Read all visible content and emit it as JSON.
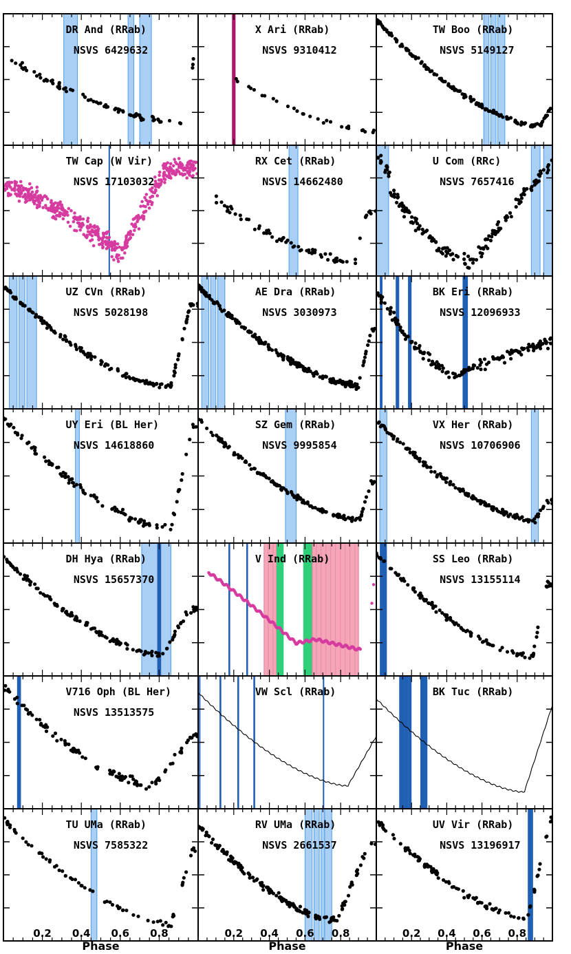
{
  "figure": {
    "xlabel": "Phase",
    "x_tick_labels": [
      "0.2",
      "0.4",
      "0.6",
      "0.8"
    ]
  },
  "colors": {
    "light_band": "#a9cff5",
    "light_band_edge": "#4f9ce8",
    "dark_band": "#1f5fb4",
    "magenta_band": "#b0156e",
    "pink_band": "#f4a6b8",
    "green_band": "#2fd07a",
    "dots": "#000000",
    "magenta_dots": "#d63ba0"
  },
  "chart_data": [
    {
      "type": "scatter",
      "row": 0,
      "col": 0,
      "title": "DR And (RRab)",
      "subtitle": "NSVS 6429632",
      "curve": {
        "kind": "rrab",
        "y0": 0.3,
        "ymin": 0.86,
        "tmin": 0.93,
        "ypeak": 0.3,
        "tpeak": 0.98,
        "spread": 0.035,
        "n": 80
      },
      "bands": [
        {
          "x0": 0.31,
          "x1": 0.38,
          "style": "light"
        },
        {
          "x0": 0.64,
          "x1": 0.67,
          "style": "light"
        },
        {
          "x0": 0.7,
          "x1": 0.76,
          "style": "light"
        }
      ]
    },
    {
      "type": "scatter",
      "row": 0,
      "col": 1,
      "title": "X Ari (RRab)",
      "subtitle": "NSVS 9310412",
      "curve": {
        "kind": "rrab",
        "y0": 0.3,
        "ymin": 0.92,
        "tmin": 0.98,
        "ypeak": 0.9,
        "tpeak": 1.0,
        "spread": 0.02,
        "n": 28,
        "xstart": 0.2
      },
      "bands": [
        {
          "x0": 0.19,
          "x1": 0.21,
          "style": "magenta"
        }
      ]
    },
    {
      "type": "scatter",
      "row": 0,
      "col": 2,
      "title": "TW Boo (RRab)",
      "subtitle": "NSVS 5149127",
      "curve": {
        "kind": "rrab",
        "y0": 0.02,
        "ymin": 0.88,
        "tmin": 0.93,
        "ypeak": 0.7,
        "tpeak": 1.0,
        "spread": 0.025,
        "n": 170
      },
      "bands": [
        {
          "x0": 0.61,
          "x1": 0.64,
          "style": "light"
        },
        {
          "x0": 0.65,
          "x1": 0.68,
          "style": "light"
        },
        {
          "x0": 0.69,
          "x1": 0.73,
          "style": "light"
        }
      ]
    },
    {
      "type": "scatter",
      "row": 1,
      "col": 0,
      "title": "TW Cap (W Vir)",
      "subtitle": "NSVS 17103032",
      "curve": {
        "kind": "wvir",
        "spread": 0.12,
        "n": 520,
        "magenta": true
      },
      "bands": [
        {
          "x0": 0.54,
          "x1": 0.545,
          "style": "dark"
        }
      ]
    },
    {
      "type": "scatter",
      "row": 1,
      "col": 1,
      "title": "RX Cet (RRab)",
      "subtitle": "NSVS 14662480",
      "curve": {
        "kind": "rrab",
        "y0": 0.3,
        "ymin": 0.92,
        "tmin": 0.88,
        "ypeak": 0.5,
        "tpeak": 0.95,
        "spread": 0.05,
        "n": 70,
        "xstart": 0.1
      },
      "bands": [
        {
          "x0": 0.51,
          "x1": 0.56,
          "style": "light"
        }
      ]
    },
    {
      "type": "scatter",
      "row": 1,
      "col": 2,
      "title": "U Com (RRc)",
      "subtitle": "NSVS 7657416",
      "curve": {
        "kind": "rrc",
        "spread": 0.08,
        "n": 170
      },
      "bands": [
        {
          "x0": 0.0,
          "x1": 0.07,
          "style": "light"
        },
        {
          "x0": 0.88,
          "x1": 0.93,
          "style": "light"
        },
        {
          "x0": 0.95,
          "x1": 1.0,
          "style": "light"
        }
      ]
    },
    {
      "type": "scatter",
      "row": 2,
      "col": 0,
      "title": "UZ CVn (RRab)",
      "subtitle": "NSVS 5028198",
      "curve": {
        "kind": "rrab",
        "y0": 0.05,
        "ymin": 0.86,
        "tmin": 0.86,
        "ypeak": 0.2,
        "tpeak": 0.96,
        "spread": 0.035,
        "n": 160
      },
      "bands": [
        {
          "x0": 0.03,
          "x1": 0.07,
          "style": "light"
        },
        {
          "x0": 0.08,
          "x1": 0.11,
          "style": "light"
        },
        {
          "x0": 0.12,
          "x1": 0.17,
          "style": "light"
        }
      ]
    },
    {
      "type": "scatter",
      "row": 2,
      "col": 1,
      "title": "AE Dra (RRab)",
      "subtitle": "NSVS 3030973",
      "curve": {
        "kind": "rrab",
        "y0": 0.05,
        "ymin": 0.85,
        "tmin": 0.9,
        "ypeak": 0.4,
        "tpeak": 0.97,
        "spread": 0.035,
        "n": 230
      },
      "bands": [
        {
          "x0": 0.02,
          "x1": 0.06,
          "style": "light"
        },
        {
          "x0": 0.07,
          "x1": 0.1,
          "style": "light"
        },
        {
          "x0": 0.11,
          "x1": 0.15,
          "style": "light"
        }
      ]
    },
    {
      "type": "scatter",
      "row": 2,
      "col": 2,
      "title": "BK Eri (RRab)",
      "subtitle": "NSVS 12096933",
      "curve": {
        "kind": "rrab",
        "y0": 0.08,
        "ymin": 0.75,
        "tmin": 0.45,
        "ypeak": 0.5,
        "tpeak": 0.97,
        "spread": 0.06,
        "n": 160
      },
      "bands": [
        {
          "x0": 0.02,
          "x1": 0.035,
          "style": "dark"
        },
        {
          "x0": 0.11,
          "x1": 0.13,
          "style": "dark"
        },
        {
          "x0": 0.18,
          "x1": 0.2,
          "style": "dark"
        },
        {
          "x0": 0.49,
          "x1": 0.52,
          "style": "dark"
        }
      ]
    },
    {
      "type": "scatter",
      "row": 3,
      "col": 0,
      "title": "UY Eri (BL Her)",
      "subtitle": "NSVS 14618860",
      "curve": {
        "kind": "rrab",
        "y0": 0.05,
        "ymin": 0.92,
        "tmin": 0.86,
        "ypeak": 0.1,
        "tpeak": 0.97,
        "spread": 0.04,
        "n": 110
      },
      "bands": [
        {
          "x0": 0.37,
          "x1": 0.39,
          "style": "light"
        }
      ]
    },
    {
      "type": "scatter",
      "row": 3,
      "col": 1,
      "title": "SZ Gem (RRab)",
      "subtitle": "NSVS 9995854",
      "curve": {
        "kind": "rrab",
        "y0": 0.05,
        "ymin": 0.85,
        "tmin": 0.91,
        "ypeak": 0.55,
        "tpeak": 0.97,
        "spread": 0.03,
        "n": 140
      },
      "bands": [
        {
          "x0": 0.49,
          "x1": 0.55,
          "style": "light"
        }
      ]
    },
    {
      "type": "scatter",
      "row": 3,
      "col": 2,
      "title": "VX Her (RRab)",
      "subtitle": "NSVS 10706906",
      "curve": {
        "kind": "rrab",
        "y0": 0.05,
        "ymin": 0.85,
        "tmin": 0.9,
        "ypeak": 0.7,
        "tpeak": 0.97,
        "spread": 0.03,
        "n": 150
      },
      "bands": [
        {
          "x0": 0.02,
          "x1": 0.06,
          "style": "light"
        },
        {
          "x0": 0.88,
          "x1": 0.92,
          "style": "light"
        }
      ]
    },
    {
      "type": "scatter",
      "row": 4,
      "col": 0,
      "title": "DH Hya (RRab)",
      "subtitle": "NSVS 15657370",
      "curve": {
        "kind": "rrab",
        "y0": 0.08,
        "ymin": 0.87,
        "tmin": 0.82,
        "ypeak": 0.5,
        "tpeak": 0.95,
        "spread": 0.035,
        "n": 130
      },
      "bands": [
        {
          "x0": 0.71,
          "x1": 0.86,
          "style": "light"
        },
        {
          "x0": 0.79,
          "x1": 0.81,
          "style": "dark"
        }
      ]
    },
    {
      "type": "line",
      "row": 4,
      "col": 1,
      "title": "V Ind (RRab)",
      "subtitle": "",
      "curve": {
        "kind": "vind",
        "magenta": true
      },
      "bands": [
        {
          "x0": 0.37,
          "x1": 0.44,
          "style": "pink"
        },
        {
          "x0": 0.44,
          "x1": 0.48,
          "style": "green"
        },
        {
          "x0": 0.59,
          "x1": 0.64,
          "style": "green"
        },
        {
          "x0": 0.64,
          "x1": 0.9,
          "style": "pink"
        },
        {
          "x0": 0.17,
          "x1": 0.18,
          "style": "dark"
        },
        {
          "x0": 0.27,
          "x1": 0.28,
          "style": "dark"
        }
      ]
    },
    {
      "type": "scatter",
      "row": 4,
      "col": 2,
      "title": "SS Leo (RRab)",
      "subtitle": "NSVS 13155114",
      "curve": {
        "kind": "rrab",
        "y0": 0.05,
        "ymin": 0.88,
        "tmin": 0.89,
        "ypeak": 0.3,
        "tpeak": 0.96,
        "spread": 0.035,
        "n": 110
      },
      "bands": [
        {
          "x0": 0.02,
          "x1": 0.06,
          "style": "dark"
        }
      ]
    },
    {
      "type": "scatter",
      "row": 5,
      "col": 0,
      "title": "V716 Oph (BL Her)",
      "subtitle": "NSVS 13513575",
      "curve": {
        "kind": "rrab",
        "y0": 0.05,
        "ymin": 0.85,
        "tmin": 0.77,
        "ypeak": 0.45,
        "tpeak": 0.97,
        "spread": 0.05,
        "n": 110
      },
      "bands": [
        {
          "x0": 0.07,
          "x1": 0.09,
          "style": "dark"
        }
      ]
    },
    {
      "type": "line",
      "row": 5,
      "col": 1,
      "title": "VW Scl (RRab)",
      "subtitle": "",
      "curve": {
        "kind": "line",
        "y0": 0.1,
        "ymin": 0.85,
        "tmin": 0.84,
        "ypeak": 0.45,
        "tpeak": 1.0
      },
      "bands": [
        {
          "x0": 0.005,
          "x1": 0.012,
          "style": "dark"
        },
        {
          "x0": 0.12,
          "x1": 0.13,
          "style": "dark"
        },
        {
          "x0": 0.22,
          "x1": 0.23,
          "style": "dark"
        },
        {
          "x0": 0.31,
          "x1": 0.32,
          "style": "dark"
        },
        {
          "x0": 0.7,
          "x1": 0.705,
          "style": "dark"
        }
      ]
    },
    {
      "type": "line",
      "row": 5,
      "col": 2,
      "title": "BK Tuc (RRab)",
      "subtitle": "",
      "curve": {
        "kind": "line",
        "y0": 0.15,
        "ymin": 0.9,
        "tmin": 0.84,
        "ypeak": 0.2,
        "tpeak": 1.0
      },
      "bands": [
        {
          "x0": 0.13,
          "x1": 0.16,
          "style": "dark"
        },
        {
          "x0": 0.16,
          "x1": 0.18,
          "style": "dark"
        },
        {
          "x0": 0.18,
          "x1": 0.2,
          "style": "dark"
        },
        {
          "x0": 0.25,
          "x1": 0.29,
          "style": "dark"
        }
      ]
    },
    {
      "type": "scatter",
      "row": 6,
      "col": 0,
      "title": "TU UMa (RRab)",
      "subtitle": "NSVS 7585322",
      "curve": {
        "kind": "rrab",
        "y0": 0.05,
        "ymin": 0.9,
        "tmin": 0.86,
        "ypeak": 0.3,
        "tpeak": 0.97,
        "spread": 0.03,
        "n": 70
      },
      "bands": [
        {
          "x0": 0.45,
          "x1": 0.48,
          "style": "light"
        }
      ]
    },
    {
      "type": "scatter",
      "row": 6,
      "col": 1,
      "title": "RV UMa (RRab)",
      "subtitle": "NSVS 2661537",
      "curve": {
        "kind": "rrab",
        "y0": 0.1,
        "ymin": 0.87,
        "tmin": 0.78,
        "ypeak": 0.25,
        "tpeak": 0.96,
        "spread": 0.04,
        "n": 170
      },
      "bands": [
        {
          "x0": 0.6,
          "x1": 0.64,
          "style": "light"
        },
        {
          "x0": 0.65,
          "x1": 0.68,
          "style": "light"
        },
        {
          "x0": 0.69,
          "x1": 0.71,
          "style": "light"
        },
        {
          "x0": 0.71,
          "x1": 0.75,
          "style": "light"
        }
      ]
    },
    {
      "type": "scatter",
      "row": 6,
      "col": 2,
      "title": "UV Vir (RRab)",
      "subtitle": "NSVS 13196917",
      "curve": {
        "kind": "rrab",
        "y0": 0.05,
        "ymin": 0.85,
        "tmin": 0.86,
        "ypeak": 0.05,
        "tpeak": 0.99,
        "spread": 0.04,
        "n": 100
      },
      "bands": [
        {
          "x0": 0.86,
          "x1": 0.89,
          "style": "dark"
        }
      ]
    }
  ]
}
